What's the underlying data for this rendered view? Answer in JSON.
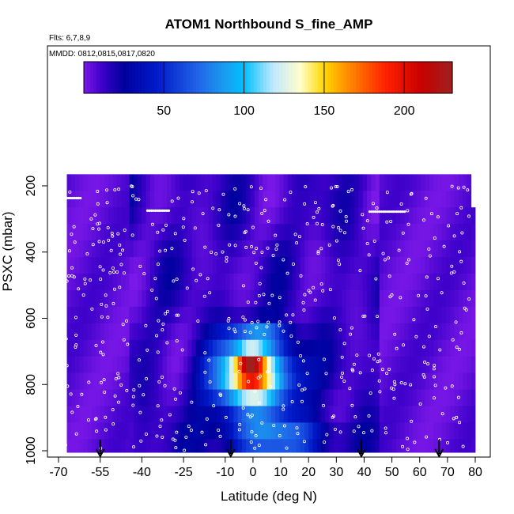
{
  "chart_data": {
    "type": "heatmap",
    "title": "ATOM1 Northbound S_fine_AMP",
    "notes": [
      "Flts: 6,7,8,9",
      "MMDD: 0812,0815,0817,0820"
    ],
    "xlabel": "Latitude (deg N)",
    "ylabel": "PSXC (mbar)",
    "xlim": [
      -70,
      80
    ],
    "ylim": [
      1000,
      100
    ],
    "xticks": [
      -70,
      -55,
      -40,
      -25,
      -10,
      0,
      10,
      20,
      30,
      40,
      50,
      60,
      70,
      80
    ],
    "xtick_labels": [
      "-70",
      "-55",
      "-40",
      "-25",
      "-10",
      "0",
      "10",
      "20",
      "30",
      "40",
      "50",
      "60",
      "70",
      "80"
    ],
    "yticks": [
      200,
      400,
      600,
      800,
      1000
    ],
    "ytick_labels": [
      "200",
      "400",
      "600",
      "800",
      "1000"
    ],
    "colorbar": {
      "range": [
        0,
        230
      ],
      "ticks": [
        50,
        100,
        150,
        200
      ],
      "tick_labels": [
        "50",
        "100",
        "150",
        "200"
      ],
      "colors": [
        "#7b18e8",
        "#3a00c8",
        "#00009e",
        "#0019c8",
        "#2060e8",
        "#1a9cf0",
        "#00c0ff",
        "#bfe8ff",
        "#ffffcc",
        "#ffd700",
        "#ff8c00",
        "#ff2200",
        "#c80000",
        "#a02020"
      ]
    },
    "approx_values": {
      "latitudes": [
        -62.5,
        -57.5,
        -52.5,
        -47.5,
        -42.5,
        -37.5,
        -32.5,
        -27.5,
        -22.5,
        -17.5,
        -12.5,
        -7.5,
        -2.5,
        2.5,
        7.5,
        12.5,
        17.5,
        22.5,
        27.5,
        32.5,
        37.5,
        42.5,
        47.5,
        52.5,
        57.5,
        62.5,
        67.5,
        72.5,
        77.5
      ],
      "pressures": [
        190,
        240,
        290,
        340,
        390,
        440,
        490,
        540,
        590,
        640,
        690,
        740,
        790,
        840,
        890,
        940,
        985
      ],
      "summary": "Background values 0-30 everywhere; maximum (~200-230) near 700-800 mbar between -5 and 5 deg N; 100-170 from 650-900 mbar between -12 and 20 deg N; 60-100 near surface between -12 and 30 deg N"
    },
    "flight_markers_lat": [
      -55,
      -8,
      39,
      67
    ]
  }
}
